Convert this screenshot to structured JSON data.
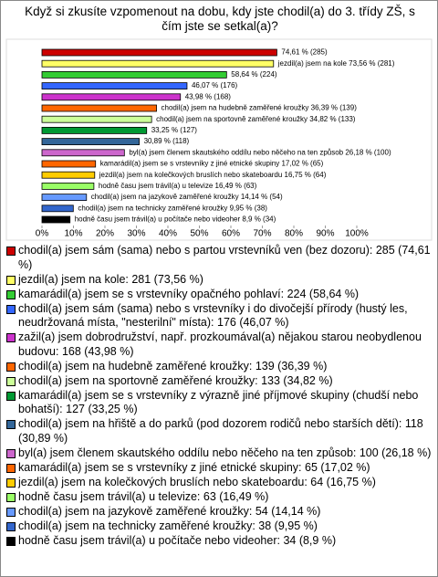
{
  "chart_data": {
    "type": "bar",
    "orientation": "horizontal",
    "title": "Když si zkusíte vzpomenout na dobu, kdy jste chodil(a) do 3. třídy ZŠ, s čím jste se setkal(a)?",
    "categories": [
      "chodil(a) jsem sám (sama) nebo s partou vrstevníků ven (bez dozoru): 285 (74,61 %)",
      "jezdil(a) jsem na kole: 281 (73,56 %)",
      "kamarádil(a) jsem se s vrstevníky opačného pohlaví: 224 (58,64 %)",
      "chodil(a) jsem sám (sama) nebo s vrstevníky i do divočejší přírody (hustý les, neudržovaná místa, \"nesterilní\" místa): 176 (46,07 %)",
      "zažil(a) jsem dobrodružství, např. prozkoumával(a) nějakou starou neobydlenou budovu: 168 (43,98 %)",
      "chodil(a) jsem na hudebně zaměřené kroužky: 139 (36,39 %)",
      "chodil(a) jsem na sportovně zaměřené kroužky: 133 (34,82 %)",
      "kamarádil(a) jsem se s vrstevníky z výrazně jiné příjmové skupiny (chudší nebo bohatší): 127 (33,25 %)",
      "chodil(a) jsem na hřiště a do parků (pod dozorem rodičů nebo starších dětí): 118 (30,89 %)",
      "byl(a) jsem členem skautského oddílu nebo něčeho na ten způsob: 100 (26,18 %)",
      "kamarádil(a) jsem se s vrstevníky z jiné etnické skupiny: 65 (17,02 %)",
      "jezdil(a) jsem na kolečkových bruslích nebo skateboardu: 64 (16,75 %)",
      "hodně času jsem trávil(a) u televize: 63 (16,49 %)",
      "chodil(a) jsem na jazykově zaměřené kroužky: 54 (14,14 %)",
      "chodil(a) jsem na technicky zaměřené kroužky: 38 (9,95 %)",
      "hodně času jsem trávil(a) u počítače nebo videoher: 34 (8,9 %)"
    ],
    "values": [
      74.61,
      73.56,
      58.64,
      46.07,
      43.98,
      36.39,
      34.82,
      33.25,
      30.89,
      26.18,
      17.02,
      16.75,
      16.49,
      14.14,
      9.95,
      8.9
    ],
    "value_labels": [
      "74,61 % (285)",
      "jezdil(a) jsem na kole 73,56 % (281)",
      "58,64 % (224)",
      "46,07 % (176)",
      "43,98 % (168)",
      "chodil(a) jsem na hudebně zaměřené kroužky 36,39 % (139)",
      "chodil(a) jsem na sportovně zaměřené kroužky 34,82 % (133)",
      "33,25 % (127)",
      "30,89 % (118)",
      "byl(a) jsem členem skautského oddílu nebo něčeho na ten způsob 26,18 % (100)",
      "kamarádil(a) jsem se s vrstevníky z jiné etnické skupiny 17,02 % (65)",
      "jezdil(a) jsem na kolečkových bruslích nebo skateboardu 16,75 % (64)",
      "hodně času jsem trávil(a) u televize 16,49 % (63)",
      "chodil(a) jsem na jazykově zaměřené kroužky 14,14 % (54)",
      "chodil(a) jsem na technicky zaměřené kroužky 9,95 % (38)",
      "hodně času jsem trávil(a) u počítače nebo videoher 8,9 % (34)"
    ],
    "colors": [
      "#cc0000",
      "#ffff66",
      "#33cc33",
      "#3366ff",
      "#cc33cc",
      "#ff6600",
      "#ccff99",
      "#009933",
      "#336699",
      "#cc66cc",
      "#ff6600",
      "#ffcc00",
      "#99ff66",
      "#6699ff",
      "#3366cc",
      "#000000"
    ],
    "xlim": [
      0,
      100
    ],
    "xticks": [
      {
        "value": 0,
        "label": "0%"
      },
      {
        "value": 10,
        "label": "10%"
      },
      {
        "value": 20,
        "label": "20%"
      },
      {
        "value": 30,
        "label": "30%"
      },
      {
        "value": 40,
        "label": "40%"
      },
      {
        "value": 50,
        "label": "50%"
      },
      {
        "value": 60,
        "label": "60%"
      },
      {
        "value": 70,
        "label": "70%"
      },
      {
        "value": 80,
        "label": "80%"
      },
      {
        "value": 90,
        "label": "90%"
      },
      {
        "value": 100,
        "label": "100%"
      }
    ]
  }
}
